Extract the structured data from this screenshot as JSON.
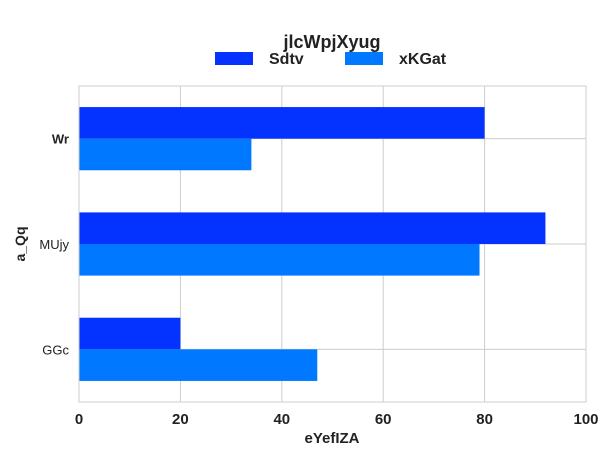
{
  "chart_data": {
    "type": "bar",
    "orientation": "horizontal",
    "title": "jlcWpjXyug",
    "xlabel": "eYefIZA",
    "ylabel": "a_Qq",
    "categories": [
      "Wr",
      "MUjy",
      "GGc"
    ],
    "series": [
      {
        "name": "Sdtv",
        "color": "#0433ff",
        "values": [
          80,
          92,
          20
        ]
      },
      {
        "name": "xKGat",
        "color": "#0078ff",
        "values": [
          34,
          79,
          47
        ]
      }
    ],
    "xlim": [
      0,
      100
    ],
    "xticks": [
      0,
      20,
      40,
      60,
      80,
      100
    ],
    "grid": true,
    "legend_position": "top-center"
  }
}
